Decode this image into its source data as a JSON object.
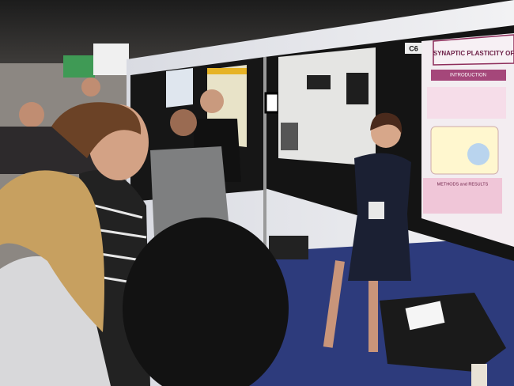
{
  "labels": {
    "booth": "C6",
    "poster_title": "SYNAPTIC PLASTICITY OF",
    "section_1": "INTRODUCTION",
    "section_2": "METHODS and RESULTS"
  }
}
